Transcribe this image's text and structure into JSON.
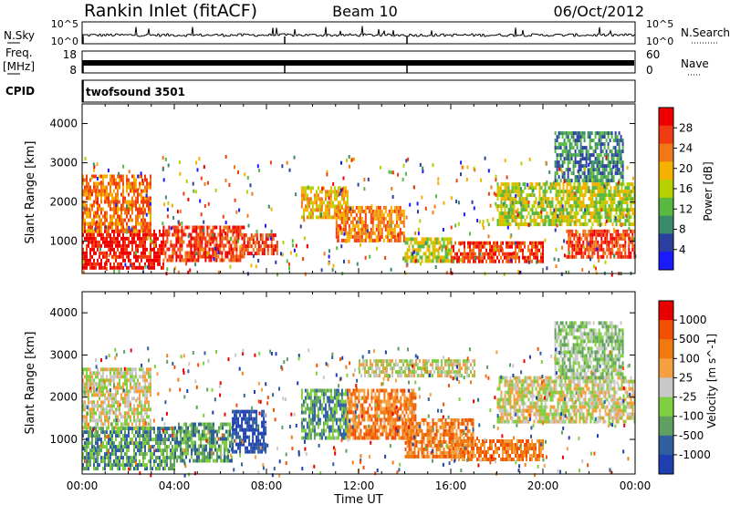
{
  "header": {
    "station": "Rankin Inlet (fitACF)",
    "beam": "Beam 10",
    "date": "06/Oct/2012"
  },
  "top_panels": {
    "nsky": {
      "label": "N.Sky",
      "ticks": [
        "10^5",
        "10^0"
      ],
      "right_ticks": [
        "10^5",
        "10^0"
      ],
      "right_label": "N.Search"
    },
    "freq": {
      "label_line1": "Freq.",
      "label_line2": "[MHz]",
      "ticks": [
        "18",
        "8"
      ],
      "right_ticks": [
        "60",
        "0"
      ],
      "right_label": "Nave"
    },
    "cpid": {
      "label": "CPID",
      "value": "twofsound 3501"
    }
  },
  "colors": {
    "power": [
      "#1a1aff",
      "#2a3fa0",
      "#3b8a6a",
      "#58b840",
      "#b8d000",
      "#f5b000",
      "#f07818",
      "#f03c10",
      "#ee0000"
    ],
    "velocity": [
      "#1f3fb0",
      "#2f5fa0",
      "#5f9f5f",
      "#80cf40",
      "#c8c8c8",
      "#f4a040",
      "#f07a10",
      "#f05000",
      "#e80000"
    ]
  },
  "chart_data": [
    {
      "type": "heatmap",
      "parameter": "power",
      "xlabel": "",
      "ylabel": "Slant Range [km]",
      "x_ticks": [
        "00:00",
        "04:00",
        "08:00",
        "12:00",
        "16:00",
        "20:00",
        "00:00"
      ],
      "x_range_hours": [
        0,
        24
      ],
      "y_ticks": [
        1000,
        2000,
        3000,
        4000
      ],
      "ylim": [
        180,
        4500
      ],
      "colorbar": {
        "label": "Power [dB]",
        "ticks": [
          "28",
          "24",
          "20",
          "16",
          "12",
          "8",
          "4"
        ],
        "range": [
          0,
          30
        ]
      },
      "echo_regions": [
        {
          "hours": [
            0.0,
            3.5
          ],
          "range_km": [
            300,
            1300
          ],
          "level": 8
        },
        {
          "hours": [
            0.0,
            3.0
          ],
          "range_km": [
            1300,
            2700
          ],
          "level": 6
        },
        {
          "hours": [
            3.5,
            7.0
          ],
          "range_km": [
            500,
            1400
          ],
          "level": 7
        },
        {
          "hours": [
            7.0,
            8.5
          ],
          "range_km": [
            700,
            1200
          ],
          "level": 7
        },
        {
          "hours": [
            9.5,
            11.5
          ],
          "range_km": [
            1600,
            2400
          ],
          "level": 5
        },
        {
          "hours": [
            11.0,
            14.0
          ],
          "range_km": [
            1000,
            1900
          ],
          "level": 6
        },
        {
          "hours": [
            14.0,
            16.0
          ],
          "range_km": [
            500,
            1100
          ],
          "level": 4
        },
        {
          "hours": [
            16.0,
            20.0
          ],
          "range_km": [
            500,
            1000
          ],
          "level": 7
        },
        {
          "hours": [
            18.0,
            24.0
          ],
          "range_km": [
            1400,
            2500
          ],
          "level": 4
        },
        {
          "hours": [
            21.0,
            24.0
          ],
          "range_km": [
            600,
            1300
          ],
          "level": 7
        },
        {
          "hours": [
            20.5,
            23.5
          ],
          "range_km": [
            2500,
            3800
          ],
          "level": 2
        }
      ]
    },
    {
      "type": "heatmap",
      "parameter": "velocity",
      "xlabel": "Time UT",
      "ylabel": "Slant Range [km]",
      "x_ticks": [
        "00:00",
        "04:00",
        "08:00",
        "12:00",
        "16:00",
        "20:00",
        "00:00"
      ],
      "x_range_hours": [
        0,
        24
      ],
      "y_ticks": [
        1000,
        2000,
        3000,
        4000
      ],
      "ylim": [
        180,
        4500
      ],
      "colorbar": {
        "label": "Velocity [m s^-1]",
        "ticks": [
          "1000",
          "500",
          "100",
          "25",
          "-25",
          "-100",
          "-500",
          "-1000"
        ],
        "range": [
          -1000,
          1000
        ]
      },
      "echo_regions": [
        {
          "hours": [
            0.0,
            3.0
          ],
          "range_km": [
            1300,
            2700
          ],
          "level": 4
        },
        {
          "hours": [
            0.0,
            4.0
          ],
          "range_km": [
            300,
            1300
          ],
          "level": 2
        },
        {
          "hours": [
            4.0,
            6.5
          ],
          "range_km": [
            500,
            1400
          ],
          "level": 2
        },
        {
          "hours": [
            6.5,
            8.0
          ],
          "range_km": [
            700,
            1700
          ],
          "level": 0
        },
        {
          "hours": [
            9.5,
            11.5
          ],
          "range_km": [
            1000,
            2200
          ],
          "level": 2
        },
        {
          "hours": [
            11.5,
            14.5
          ],
          "range_km": [
            1000,
            2200
          ],
          "level": 6
        },
        {
          "hours": [
            14.0,
            17.0
          ],
          "range_km": [
            600,
            1500
          ],
          "level": 6
        },
        {
          "hours": [
            16.0,
            20.0
          ],
          "range_km": [
            500,
            1000
          ],
          "level": 6
        },
        {
          "hours": [
            12.0,
            17.0
          ],
          "range_km": [
            2500,
            2900
          ],
          "level": 4
        },
        {
          "hours": [
            18.0,
            24.0
          ],
          "range_km": [
            1400,
            2500
          ],
          "level": 4
        },
        {
          "hours": [
            20.5,
            23.5
          ],
          "range_km": [
            2500,
            3800
          ],
          "level": 3
        }
      ]
    }
  ]
}
